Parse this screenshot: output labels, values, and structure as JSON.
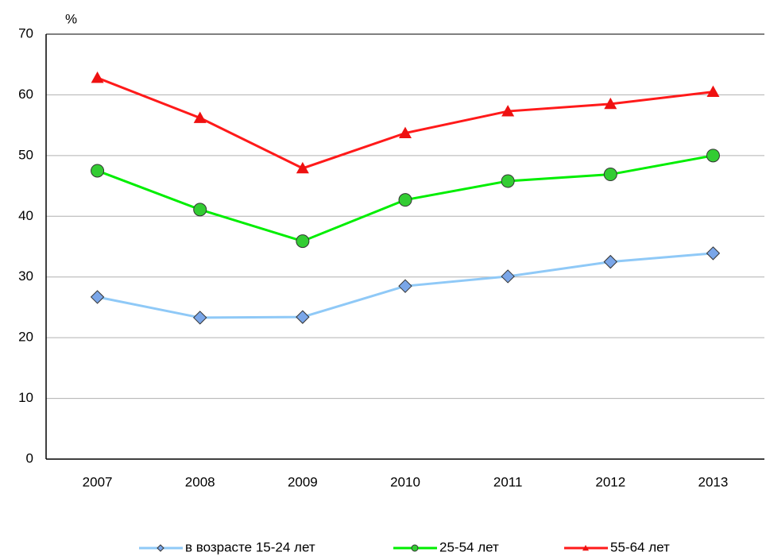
{
  "chart_data": {
    "type": "line",
    "y_unit": "%",
    "categories": [
      "2007",
      "2008",
      "2009",
      "2010",
      "2011",
      "2012",
      "2013"
    ],
    "series": [
      {
        "name": "в возрасте 15-24 лет",
        "color": "#8fc9f7",
        "marker": "diamond",
        "marker_color": "#7aa6e8",
        "values": [
          26.7,
          23.3,
          23.4,
          28.5,
          30.1,
          32.5,
          33.9
        ]
      },
      {
        "name": "25-54 лет",
        "color": "#00ee00",
        "marker": "circle",
        "marker_color": "#33cc33",
        "values": [
          47.5,
          41.1,
          35.9,
          42.7,
          45.8,
          46.9,
          50.0
        ]
      },
      {
        "name": "55-64 лет",
        "color": "#ff1a1a",
        "marker": "triangle",
        "marker_color": "#ee1111",
        "values": [
          62.8,
          56.2,
          47.9,
          53.7,
          57.3,
          58.5,
          60.5
        ]
      }
    ],
    "ylim": [
      0,
      70
    ],
    "yticks": [
      0,
      10,
      20,
      30,
      40,
      50,
      60,
      70
    ],
    "grid": true,
    "legend": "bottom"
  }
}
